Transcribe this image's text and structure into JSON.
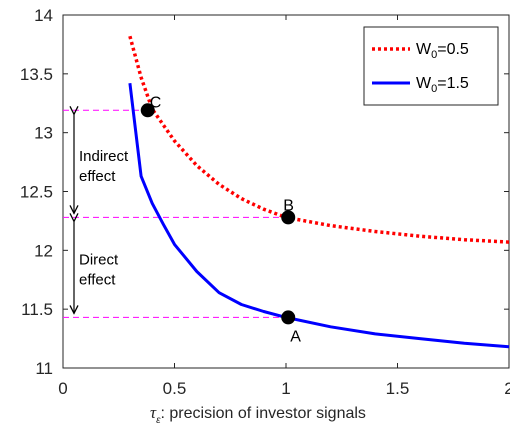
{
  "chart_data": {
    "type": "line",
    "xlabel": ": precision of investor signals",
    "xlabel_symbol": "τ",
    "xlabel_subscript": "ε",
    "xlim": [
      0,
      2
    ],
    "ylim": [
      11,
      14
    ],
    "xticks": [
      "0",
      "0.5",
      "1",
      "1.5",
      "2"
    ],
    "yticks": [
      "11",
      "11.5",
      "12",
      "12.5",
      "13",
      "13.5",
      "14"
    ],
    "grid": false,
    "legend_position": "top-right",
    "series": [
      {
        "name_prefix": "W",
        "name_subscript": "0",
        "name_suffix": "=0.5",
        "color": "#ff0000",
        "style": "dotted",
        "x": [
          0.3,
          0.35,
          0.4,
          0.5,
          0.6,
          0.7,
          0.8,
          0.9,
          1.0,
          1.2,
          1.4,
          1.6,
          1.8,
          2.0
        ],
        "y": [
          13.82,
          13.47,
          13.2,
          12.93,
          12.72,
          12.56,
          12.44,
          12.35,
          12.28,
          12.21,
          12.16,
          12.12,
          12.09,
          12.07
        ]
      },
      {
        "name_prefix": "W",
        "name_subscript": "0",
        "name_suffix": "=1.5",
        "color": "#0000ff",
        "style": "solid",
        "x": [
          0.3,
          0.35,
          0.4,
          0.45,
          0.5,
          0.6,
          0.7,
          0.8,
          0.9,
          1.0,
          1.2,
          1.4,
          1.6,
          1.8,
          2.0
        ],
        "y": [
          13.42,
          12.63,
          12.4,
          12.22,
          12.05,
          11.82,
          11.64,
          11.54,
          11.48,
          11.43,
          11.35,
          11.29,
          11.25,
          11.21,
          11.18
        ]
      }
    ],
    "points": [
      {
        "label": "C",
        "x": 0.38,
        "y": 13.19,
        "label_pos": "upper-right"
      },
      {
        "label": "B",
        "x": 1.01,
        "y": 12.28,
        "label_pos": "above"
      },
      {
        "label": "A",
        "x": 1.01,
        "y": 11.43,
        "label_pos": "below"
      }
    ],
    "reference_lines": [
      13.19,
      12.28,
      11.43
    ],
    "annotations": [
      {
        "lines": [
          "Indirect",
          "effect"
        ],
        "from": 13.19,
        "to": 12.28
      },
      {
        "lines": [
          "Direct",
          "effect"
        ],
        "from": 12.28,
        "to": 11.43
      }
    ]
  }
}
